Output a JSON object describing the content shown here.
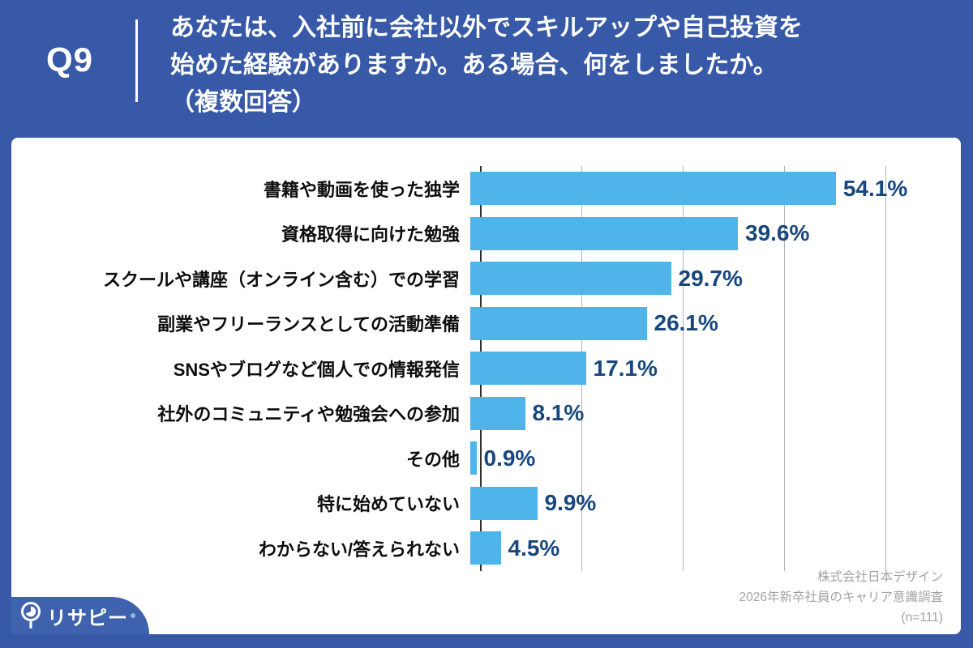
{
  "header": {
    "question_number": "Q9",
    "question_lines": [
      "あなたは、入社前に会社以外でスキルアップや自己投資を",
      "始めた経験がありますか。ある場合、何をしましたか。",
      "（複数回答）"
    ]
  },
  "chart_data": {
    "type": "bar",
    "orientation": "horizontal",
    "categories": [
      "書籍や動画を使った独学",
      "資格取得に向けた勉強",
      "スクールや講座（オンライン含む）での学習",
      "副業やフリーランスとしての活動準備",
      "SNSやブログなど個人での情報発信",
      "社外のコミュニティや勉強会への参加",
      "その他",
      "特に始めていない",
      "わからない/答えられない"
    ],
    "values": [
      54.1,
      39.6,
      29.7,
      26.1,
      17.1,
      8.1,
      0.9,
      9.9,
      4.5
    ],
    "value_labels": [
      "54.1%",
      "39.6%",
      "29.7%",
      "26.1%",
      "17.1%",
      "8.1%",
      "0.9%",
      "9.9%",
      "4.5%"
    ],
    "xlim": [
      0,
      60
    ],
    "gridline_interval": 15,
    "grid": true,
    "legend": false,
    "title": "",
    "xlabel": "",
    "ylabel": ""
  },
  "footer": {
    "source_lines": [
      "株式会社日本デザイン",
      "2026年新卒社員のキャリア意識調査",
      "(n=111)"
    ],
    "logo_text": "リサピー"
  },
  "colors": {
    "bg_blue": "#3759a7",
    "bar_blue": "#4eb4e9",
    "value_navy": "#17477e",
    "label_black": "#0d0d0d",
    "grid_gray": "#b3b3b3",
    "axis_dark": "#2f2f2f",
    "source_gray": "#a3a3a3",
    "logo_tab_blue": "#3e62ae",
    "logo_dot_blue": "#8fb9e3",
    "card_white": "#ffffff",
    "text_white": "#ffffff"
  }
}
